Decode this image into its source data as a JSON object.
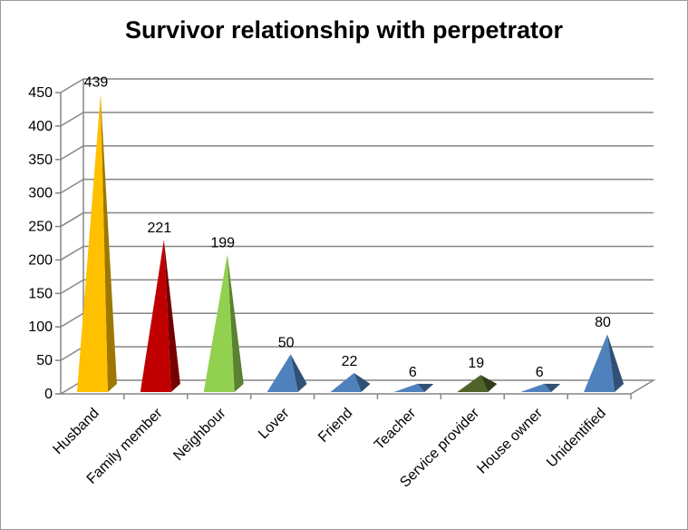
{
  "chart_data": {
    "type": "bar",
    "title": "Survivor relationship with perpetrator",
    "categories": [
      "Husband",
      "Family member",
      "Neighbour",
      "Lover",
      "Friend",
      "Teacher",
      "Service provider",
      "House owner",
      "Unidentified"
    ],
    "values": [
      439,
      221,
      199,
      50,
      22,
      6,
      19,
      6,
      80
    ],
    "data_labels": [
      "439",
      "221",
      "199",
      "50",
      "22",
      "6",
      "19",
      "6",
      "80"
    ],
    "colors": [
      "#FFC000",
      "#C00000",
      "#92D050",
      "#4F81BD",
      "#4F81BD",
      "#4F81BD",
      "#4F6228",
      "#4F81BD",
      "#4F81BD"
    ],
    "ylim": [
      0,
      450
    ],
    "yticks": [
      "0",
      "50",
      "100",
      "150",
      "200",
      "250",
      "300",
      "350",
      "400",
      "450"
    ],
    "grid": true,
    "legend": "none",
    "style": "3d-pyramid"
  }
}
